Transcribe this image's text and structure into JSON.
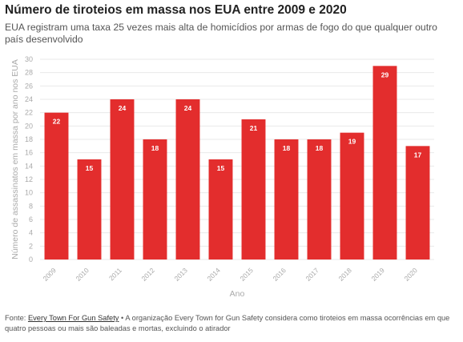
{
  "header": {
    "title": "Número de tiroteios em massa nos EUA entre 2009 e 2020",
    "subtitle": "EUA registram uma taxa 25 vezes mais alta de homicídios por armas de fogo do que qualquer outro país desenvolvido"
  },
  "footer": {
    "source_prefix": "Fonte: ",
    "source_link": "Every Town For Gun Safety",
    "source_note": " • A organização Every Town for Gun Safety considera como tiroteios em massa ocorrências em que quatro pessoas ou mais são baleadas e mortas, excluindo o atirador"
  },
  "colors": {
    "bar": "#e32d2d",
    "grid": "#eaeaea",
    "axis_text": "#aaaaaa",
    "label_text": "#ffffff"
  },
  "chart_data": {
    "type": "bar",
    "title": "Número de tiroteios em massa nos EUA entre 2009 e 2020",
    "xlabel": "Ano",
    "ylabel": "Número de assassinatos em massa por ano nos EUA",
    "categories": [
      "2009",
      "2010",
      "2011",
      "2012",
      "2013",
      "2014",
      "2015",
      "2016",
      "2017",
      "2018",
      "2019",
      "2020"
    ],
    "values": [
      22,
      15,
      24,
      18,
      24,
      15,
      21,
      18,
      18,
      19,
      29,
      17
    ],
    "ylim": [
      0,
      30
    ],
    "yticks": [
      0,
      2,
      4,
      6,
      8,
      10,
      12,
      14,
      16,
      18,
      20,
      22,
      24,
      26,
      28,
      30
    ],
    "grid": true,
    "data_labels": true
  }
}
